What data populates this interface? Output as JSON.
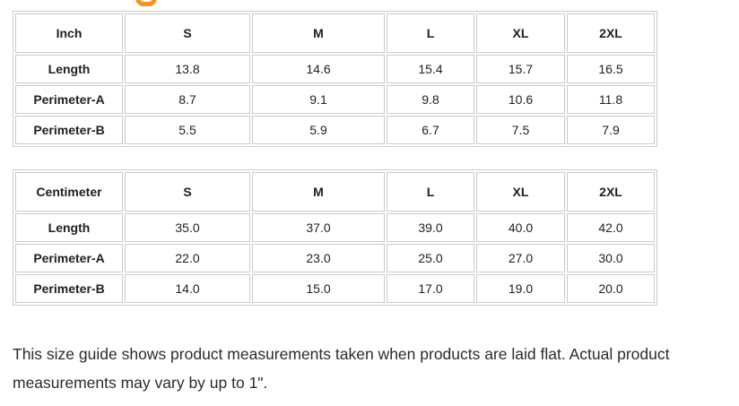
{
  "heading_fragment": {
    "description": "cropped-orange-letter-descender",
    "color": "#F7941E"
  },
  "tables": [
    {
      "unit_label": "Inch",
      "columns": [
        "S",
        "M",
        "L",
        "XL",
        "2XL"
      ],
      "rows": [
        {
          "label": "Length",
          "values": [
            "13.8",
            "14.6",
            "15.4",
            "15.7",
            "16.5"
          ]
        },
        {
          "label": "Perimeter-A",
          "values": [
            "8.7",
            "9.1",
            "9.8",
            "10.6",
            "11.8"
          ]
        },
        {
          "label": "Perimeter-B",
          "values": [
            "5.5",
            "5.9",
            "6.7",
            "7.5",
            "7.9"
          ]
        }
      ]
    },
    {
      "unit_label": "Centimeter",
      "columns": [
        "S",
        "M",
        "L",
        "XL",
        "2XL"
      ],
      "rows": [
        {
          "label": "Length",
          "values": [
            "35.0",
            "37.0",
            "39.0",
            "40.0",
            "42.0"
          ]
        },
        {
          "label": "Perimeter-A",
          "values": [
            "22.0",
            "23.0",
            "25.0",
            "27.0",
            "30.0"
          ]
        },
        {
          "label": "Perimeter-B",
          "values": [
            "14.0",
            "15.0",
            "17.0",
            "19.0",
            "20.0"
          ]
        }
      ]
    }
  ],
  "note": {
    "text": "This size guide shows product measurements taken when products are laid flat. Actual product measurements may vary by up to 1\"."
  }
}
